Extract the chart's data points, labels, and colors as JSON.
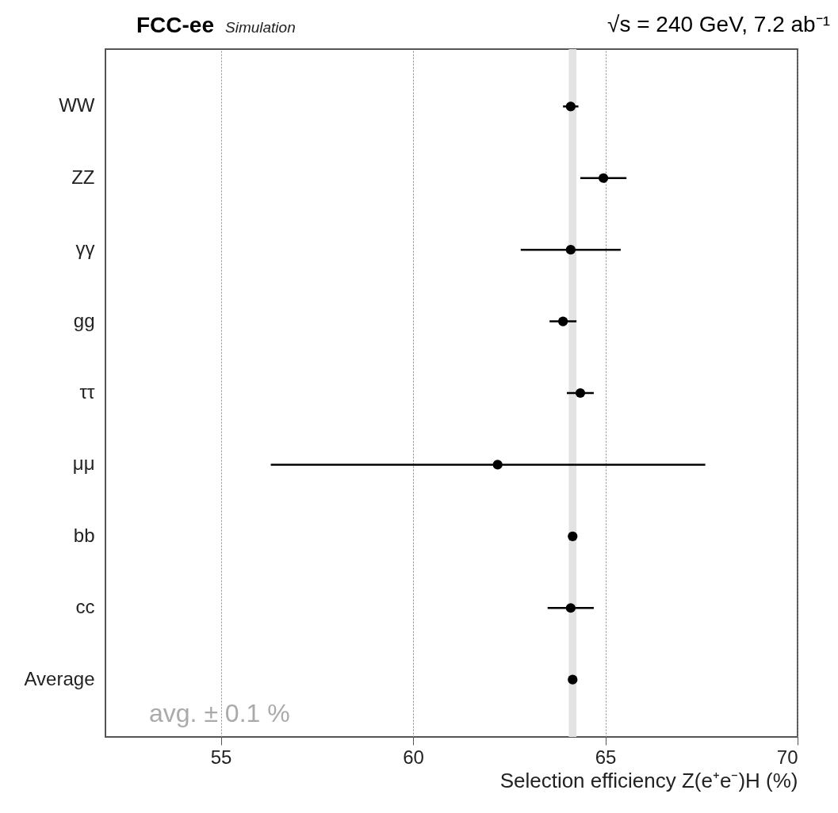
{
  "chart_data": {
    "type": "scatter",
    "orientation": "horizontal",
    "title": "FCC-ee",
    "subtitle": "Simulation",
    "annotations": [
      "√s = 240 GeV, 7.2 ab⁻¹",
      "avg. ± 0.1 %"
    ],
    "xlabel": "Selection efficiency Z(e⁺e⁻)H  (%)",
    "categories": [
      "WW",
      "ZZ",
      "γγ",
      "gg",
      "ττ",
      "μμ",
      "bb",
      "cc",
      "Average"
    ],
    "series": [
      {
        "color": "#000000",
        "values": [
          64.1,
          64.95,
          64.1,
          63.9,
          64.35,
          62.2,
          64.15,
          64.1,
          64.15
        ],
        "errors": [
          0.2,
          0.6,
          1.3,
          0.35,
          0.35,
          [
            56.3,
            67.6
          ],
          null,
          0.6,
          null
        ]
      }
    ],
    "xlim": [
      52,
      70
    ],
    "xticks": [
      55,
      60,
      65,
      70
    ],
    "grid": "x",
    "marker": "circle",
    "bands": [
      {
        "axis": "x",
        "from": 64.05,
        "to": 64.25,
        "color": "#e3e3e3"
      }
    ]
  }
}
